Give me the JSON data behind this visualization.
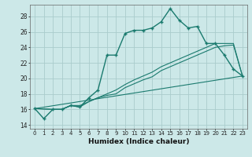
{
  "xlabel": "Humidex (Indice chaleur)",
  "background_color": "#cce8e8",
  "grid_color": "#aacccc",
  "line_color": "#1a7a6e",
  "xlim": [
    -0.5,
    23.5
  ],
  "ylim": [
    13.5,
    29.5
  ],
  "yticks": [
    14,
    16,
    18,
    20,
    22,
    24,
    26,
    28
  ],
  "xticks": [
    0,
    1,
    2,
    3,
    4,
    5,
    6,
    7,
    8,
    9,
    10,
    11,
    12,
    13,
    14,
    15,
    16,
    17,
    18,
    19,
    20,
    21,
    22,
    23
  ],
  "series1_x": [
    0,
    1,
    2,
    3,
    4,
    5,
    6,
    7,
    8,
    9,
    10,
    11,
    12,
    13,
    14,
    15,
    16,
    17,
    18,
    19,
    20,
    21,
    22,
    23
  ],
  "series1_y": [
    16.1,
    14.8,
    16.0,
    16.0,
    16.5,
    16.3,
    17.5,
    18.5,
    23.0,
    23.0,
    25.8,
    26.2,
    26.2,
    26.5,
    27.3,
    29.0,
    27.5,
    26.5,
    26.7,
    24.5,
    24.5,
    23.0,
    21.2,
    20.3
  ],
  "series2_x": [
    0,
    2,
    3,
    4,
    5,
    6,
    7,
    8,
    9,
    10,
    11,
    12,
    13,
    14,
    15,
    16,
    17,
    18,
    19,
    20,
    21,
    22,
    23
  ],
  "series2_y": [
    16.1,
    16.0,
    16.0,
    16.5,
    16.5,
    17.0,
    17.5,
    18.0,
    18.5,
    19.2,
    19.8,
    20.3,
    20.8,
    21.5,
    22.0,
    22.5,
    23.0,
    23.5,
    24.0,
    24.5,
    24.5,
    24.5,
    20.3
  ],
  "series3_x": [
    0,
    2,
    3,
    4,
    5,
    6,
    7,
    8,
    9,
    10,
    11,
    12,
    13,
    14,
    15,
    16,
    17,
    18,
    19,
    20,
    21,
    22,
    23
  ],
  "series3_y": [
    16.1,
    16.0,
    16.0,
    16.5,
    16.3,
    17.0,
    17.5,
    17.8,
    18.0,
    18.8,
    19.3,
    19.8,
    20.2,
    21.0,
    21.5,
    22.0,
    22.5,
    23.0,
    23.5,
    24.0,
    24.2,
    24.3,
    20.3
  ],
  "series4_x": [
    0,
    23
  ],
  "series4_y": [
    16.1,
    20.3
  ]
}
